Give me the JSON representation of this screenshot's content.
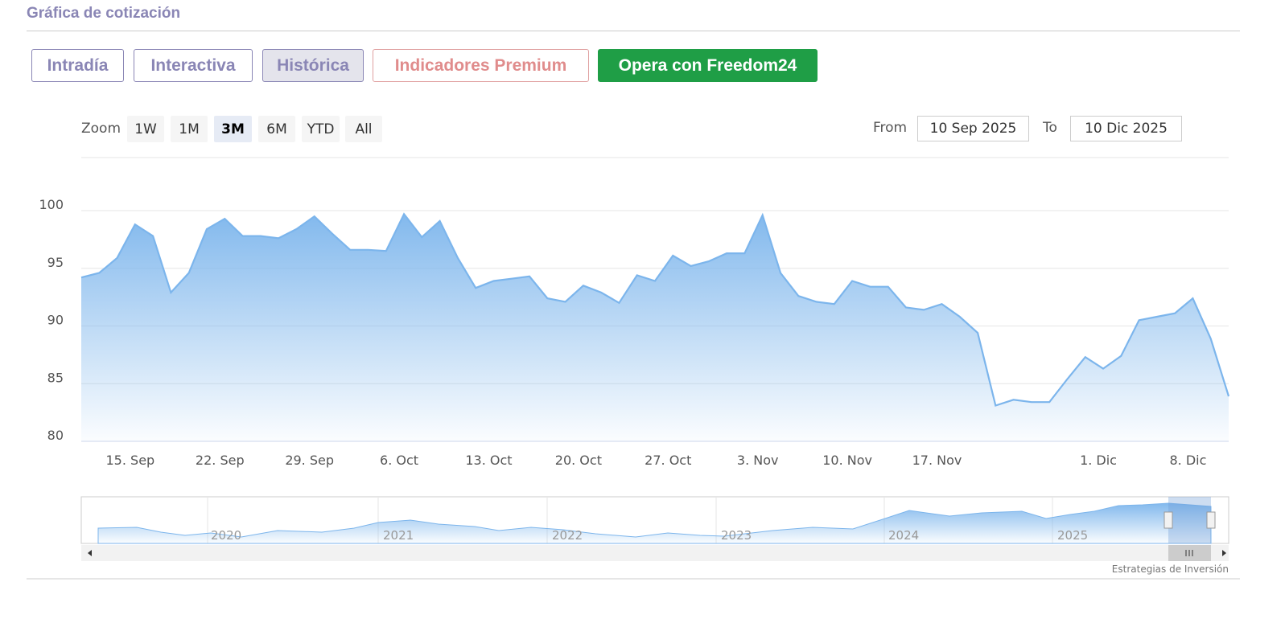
{
  "header": {
    "title": "Gráfica de cotización"
  },
  "tabs": [
    "Intradía",
    "Interactiva",
    "Histórica",
    "Indicadores Premium",
    "Opera con Freedom24"
  ],
  "zoom": {
    "label": "Zoom",
    "buttons": [
      "1W",
      "1M",
      "3M",
      "6M",
      "YTD",
      "All"
    ],
    "active": 2
  },
  "range": {
    "from_label": "From",
    "from": "10 Sep 2025",
    "to_label": "To",
    "to": "10 Dic 2025"
  },
  "chart_data": {
    "type": "area",
    "color": "#7cb5ec",
    "grid": true,
    "categories": [
      null,
      null,
      null,
      "15. Sep",
      null,
      null,
      null,
      null,
      "22. Sep",
      null,
      null,
      null,
      null,
      "29. Sep",
      null,
      null,
      null,
      null,
      "6. Oct",
      null,
      null,
      null,
      null,
      "13. Oct",
      null,
      null,
      null,
      null,
      "20. Oct",
      null,
      null,
      null,
      null,
      "27. Oct",
      null,
      null,
      null,
      null,
      "3. Nov",
      null,
      null,
      null,
      null,
      "10. Nov",
      null,
      null,
      null,
      null,
      "17. Nov",
      null,
      null,
      null,
      null,
      null,
      null,
      null,
      null,
      "1. Dic",
      null,
      null,
      null,
      null,
      "8. Dic",
      null,
      null
    ],
    "values": [
      94.2,
      94.6,
      95.9,
      98.8,
      97.8,
      92.9,
      94.6,
      98.4,
      99.3,
      97.8,
      97.8,
      97.6,
      98.4,
      99.5,
      98.0,
      96.6,
      96.6,
      96.5,
      99.7,
      97.7,
      99.1,
      95.9,
      93.3,
      93.9,
      94.1,
      94.3,
      92.4,
      92.1,
      93.5,
      92.9,
      92.0,
      94.4,
      93.9,
      96.1,
      95.2,
      95.6,
      96.3,
      96.3,
      99.6,
      94.6,
      92.6,
      92.1,
      91.9,
      93.9,
      93.4,
      93.4,
      91.6,
      91.4,
      91.9,
      90.8,
      89.4,
      83.1,
      83.6,
      83.4,
      83.4,
      85.4,
      87.3,
      86.3,
      87.4,
      90.5,
      90.8,
      91.1,
      92.4,
      88.9,
      83.9
    ],
    "ylim": [
      80,
      104.6
    ],
    "yticks": [
      80,
      85,
      90,
      95,
      100
    ]
  },
  "navigator": {
    "years": [
      "2020",
      "2021",
      "2022",
      "2023",
      "2024",
      "2025"
    ]
  },
  "credit": "Estrategias de Inversión"
}
